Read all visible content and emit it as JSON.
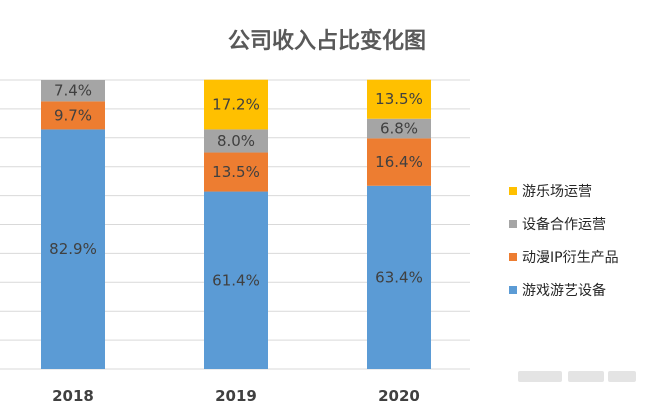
{
  "chart_data": {
    "type": "bar",
    "stacked": true,
    "title": "公司收入占比变化图",
    "categories": [
      "2018",
      "2019",
      "2020"
    ],
    "series": [
      {
        "name": "游戏游艺设备",
        "color": "#5b9bd5",
        "values": [
          82.9,
          61.4,
          63.4
        ],
        "labels": [
          "82.9%",
          "61.4%",
          "63.4%"
        ]
      },
      {
        "name": "动漫IP衍生产品",
        "color": "#ed7d31",
        "values": [
          9.7,
          13.5,
          16.4
        ],
        "labels": [
          "9.7%",
          "13.5%",
          "16.4%"
        ]
      },
      {
        "name": "设备合作运营",
        "color": "#a5a5a5",
        "values": [
          7.4,
          8.0,
          6.8
        ],
        "labels": [
          "7.4%",
          "8.0%",
          "6.8%"
        ]
      },
      {
        "name": "游乐场运营",
        "color": "#ffc000",
        "values": [
          0,
          17.2,
          13.5
        ],
        "labels": [
          "",
          "17.2%",
          "13.5%"
        ]
      }
    ],
    "ylim": [
      0,
      100
    ],
    "grid": true,
    "legend_position": "right",
    "legend_order": [
      3,
      2,
      1,
      0
    ]
  }
}
